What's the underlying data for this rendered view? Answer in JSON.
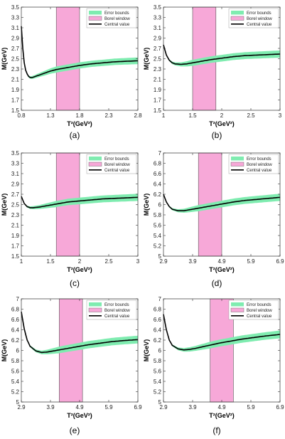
{
  "chart_data": [
    {
      "panel": "(a)",
      "type": "line",
      "xlabel": "T²(GeV²)",
      "ylabel": "M(GeV)",
      "xlim": [
        0.8,
        2.8
      ],
      "ylim": [
        1.5,
        3.5
      ],
      "xticks": [
        0.8,
        1.3,
        1.8,
        2.3,
        2.8
      ],
      "yticks": [
        1.5,
        1.7,
        1.9,
        2.1,
        2.3,
        2.5,
        2.7,
        2.9,
        3.1,
        3.3,
        3.5
      ],
      "borel_window": [
        1.4,
        1.8
      ],
      "legend": [
        "Error bounds",
        "Borel window",
        "Central value"
      ],
      "central_value": {
        "x": [
          0.8,
          0.82,
          0.85,
          0.88,
          0.92,
          0.96,
          1.0,
          1.1,
          1.2,
          1.3,
          1.4,
          1.5,
          1.6,
          1.8,
          2.0,
          2.2,
          2.4,
          2.6,
          2.8
        ],
        "y": [
          3.13,
          2.75,
          2.42,
          2.25,
          2.16,
          2.13,
          2.14,
          2.18,
          2.22,
          2.26,
          2.29,
          2.31,
          2.33,
          2.37,
          2.4,
          2.42,
          2.44,
          2.45,
          2.46
        ]
      },
      "error_halfwidth": {
        "x": [
          0.8,
          1.0,
          1.4,
          2.0,
          2.8
        ],
        "y": [
          0.005,
          0.03,
          0.06,
          0.06,
          0.065
        ]
      }
    },
    {
      "panel": "(b)",
      "type": "line",
      "xlabel": "T²(GeV²)",
      "ylabel": "M(GeV)",
      "xlim": [
        1,
        3
      ],
      "ylim": [
        1.5,
        3.5
      ],
      "xticks": [
        1,
        1.5,
        2,
        2.5,
        3
      ],
      "yticks": [
        1.5,
        1.7,
        1.9,
        2.1,
        2.3,
        2.5,
        2.7,
        2.9,
        3.1,
        3.3,
        3.5
      ],
      "borel_window": [
        1.5,
        1.9
      ],
      "legend": [
        "Error bounds",
        "Borel window",
        "Central value"
      ],
      "central_value": {
        "x": [
          1.0,
          1.05,
          1.1,
          1.15,
          1.2,
          1.3,
          1.4,
          1.5,
          1.6,
          1.8,
          2.0,
          2.2,
          2.4,
          2.6,
          2.8,
          3.0
        ],
        "y": [
          2.77,
          2.57,
          2.47,
          2.42,
          2.4,
          2.39,
          2.4,
          2.42,
          2.44,
          2.48,
          2.51,
          2.54,
          2.56,
          2.57,
          2.58,
          2.59
        ]
      },
      "error_halfwidth": {
        "x": [
          1.0,
          1.2,
          1.5,
          2.0,
          3.0
        ],
        "y": [
          0.005,
          0.03,
          0.06,
          0.065,
          0.07
        ]
      }
    },
    {
      "panel": "(c)",
      "type": "line",
      "xlabel": "T²(GeV²)",
      "ylabel": "M(GeV)",
      "xlim": [
        1,
        3
      ],
      "ylim": [
        1.5,
        3.5
      ],
      "xticks": [
        1,
        1.5,
        2,
        2.5,
        3
      ],
      "yticks": [
        1.5,
        1.7,
        1.9,
        2.1,
        2.3,
        2.5,
        2.7,
        2.9,
        3.1,
        3.3,
        3.5
      ],
      "borel_window": [
        1.6,
        2.0
      ],
      "legend": [
        "Error bounds",
        "Borel window",
        "Central value"
      ],
      "central_value": {
        "x": [
          1.0,
          1.05,
          1.1,
          1.15,
          1.2,
          1.3,
          1.4,
          1.6,
          1.8,
          2.0,
          2.2,
          2.4,
          2.6,
          2.8,
          3.0
        ],
        "y": [
          2.66,
          2.52,
          2.46,
          2.44,
          2.44,
          2.45,
          2.47,
          2.51,
          2.55,
          2.57,
          2.59,
          2.61,
          2.62,
          2.63,
          2.64
        ]
      },
      "error_halfwidth": {
        "x": [
          1.0,
          1.2,
          1.6,
          2.0,
          3.0
        ],
        "y": [
          0.005,
          0.03,
          0.06,
          0.065,
          0.07
        ]
      }
    },
    {
      "panel": "(d)",
      "type": "line",
      "xlabel": "T²(GeV²)",
      "ylabel": "M(GeV)",
      "xlim": [
        2.9,
        6.9
      ],
      "ylim": [
        5,
        7
      ],
      "xticks": [
        2.9,
        3.9,
        4.9,
        5.9,
        6.9
      ],
      "yticks": [
        5,
        5.2,
        5.4,
        5.6,
        5.8,
        6,
        6.2,
        6.4,
        6.6,
        6.8,
        7
      ],
      "borel_window": [
        4.1,
        4.9
      ],
      "legend": [
        "Error bounds",
        "Borel window",
        "Central value"
      ],
      "central_value": {
        "x": [
          2.9,
          3.0,
          3.1,
          3.2,
          3.4,
          3.6,
          3.8,
          4.1,
          4.5,
          4.9,
          5.3,
          5.7,
          6.1,
          6.5,
          6.9
        ],
        "y": [
          6.2,
          6.05,
          5.96,
          5.91,
          5.88,
          5.88,
          5.9,
          5.93,
          5.97,
          6.01,
          6.05,
          6.08,
          6.1,
          6.12,
          6.14
        ]
      },
      "error_halfwidth": {
        "x": [
          2.9,
          3.4,
          4.1,
          5.0,
          6.9
        ],
        "y": [
          0.005,
          0.03,
          0.06,
          0.065,
          0.07
        ]
      }
    },
    {
      "panel": "(e)",
      "type": "line",
      "xlabel": "T²(GeV²)",
      "ylabel": "M(GeV)",
      "xlim": [
        2.9,
        6.9
      ],
      "ylim": [
        5,
        7
      ],
      "xticks": [
        2.9,
        3.9,
        4.9,
        5.9,
        6.9
      ],
      "yticks": [
        5,
        5.2,
        5.4,
        5.6,
        5.8,
        6,
        6.2,
        6.4,
        6.6,
        6.8,
        7
      ],
      "borel_window": [
        4.2,
        5.0
      ],
      "legend": [
        "Error bounds",
        "Borel window",
        "Central value"
      ],
      "central_value": {
        "x": [
          2.9,
          3.0,
          3.1,
          3.2,
          3.4,
          3.6,
          3.8,
          4.0,
          4.4,
          4.8,
          5.2,
          5.6,
          6.0,
          6.4,
          6.9
        ],
        "y": [
          6.75,
          6.42,
          6.2,
          6.08,
          5.99,
          5.96,
          5.97,
          5.99,
          6.03,
          6.07,
          6.11,
          6.14,
          6.17,
          6.19,
          6.21
        ]
      },
      "error_halfwidth": {
        "x": [
          2.9,
          3.6,
          4.2,
          5.0,
          6.9
        ],
        "y": [
          0.005,
          0.035,
          0.065,
          0.07,
          0.075
        ]
      }
    },
    {
      "panel": "(f)",
      "type": "line",
      "xlabel": "T²(GeV²)",
      "ylabel": "M(GeV)",
      "xlim": [
        2.9,
        6.9
      ],
      "ylim": [
        5,
        7
      ],
      "xticks": [
        2.9,
        3.9,
        4.9,
        5.9,
        6.9
      ],
      "yticks": [
        5,
        5.2,
        5.4,
        5.6,
        5.8,
        6,
        6.2,
        6.4,
        6.6,
        6.8,
        7
      ],
      "borel_window": [
        4.5,
        5.3
      ],
      "legend": [
        "Error bounds",
        "Borel window",
        "Central value"
      ],
      "central_value": {
        "x": [
          2.9,
          3.0,
          3.1,
          3.2,
          3.4,
          3.6,
          3.8,
          4.0,
          4.4,
          4.8,
          5.2,
          5.6,
          6.0,
          6.4,
          6.9
        ],
        "y": [
          6.7,
          6.4,
          6.2,
          6.1,
          6.03,
          6.01,
          6.02,
          6.04,
          6.09,
          6.14,
          6.18,
          6.22,
          6.25,
          6.28,
          6.31
        ]
      },
      "error_halfwidth": {
        "x": [
          2.9,
          3.6,
          4.5,
          5.3,
          6.9
        ],
        "y": [
          0.005,
          0.035,
          0.065,
          0.07,
          0.075
        ]
      }
    }
  ],
  "style": {
    "error_band_color": "#7fecb0",
    "borel_window_color": "#f7a8d8",
    "central_line_color": "#000000"
  }
}
